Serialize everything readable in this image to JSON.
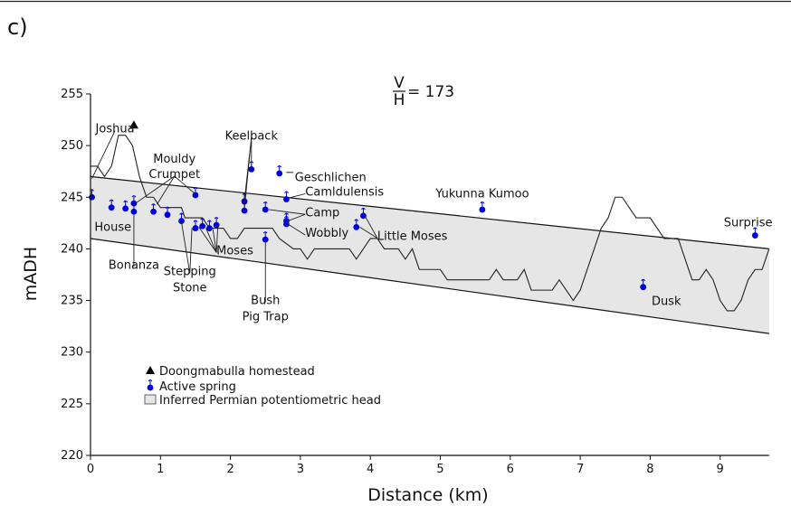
{
  "panel_label": "c)",
  "chart_data": {
    "type": "line",
    "xlabel": "Distance (km)",
    "ylabel": "mADH",
    "xlim": [
      0,
      9.7
    ],
    "ylim": [
      220,
      255
    ],
    "xticks": [
      0,
      1,
      2,
      3,
      4,
      5,
      6,
      7,
      8,
      9
    ],
    "yticks": [
      220,
      225,
      230,
      235,
      240,
      245,
      250,
      255
    ],
    "annotation_ratio": {
      "numerator": "V",
      "denominator": "H",
      "value": "= 173"
    },
    "legend_position": "bottom-left",
    "legend": [
      {
        "label": "Doongmabulla homestead",
        "symbol": "triangle",
        "color": "#000000"
      },
      {
        "label": "Active spring",
        "symbol": "spring",
        "color": "#0000dd"
      },
      {
        "label": "Inferred Permian potentiometric head",
        "symbol": "band",
        "color": "#e6e6e6"
      }
    ],
    "band": {
      "upper": [
        [
          0,
          247
        ],
        [
          9.7,
          240
        ]
      ],
      "lower": [
        [
          0,
          241
        ],
        [
          9.7,
          231.8
        ]
      ]
    },
    "ground_profile": [
      [
        0,
        248
      ],
      [
        0.1,
        248
      ],
      [
        0.2,
        247
      ],
      [
        0.3,
        248
      ],
      [
        0.4,
        251
      ],
      [
        0.5,
        251
      ],
      [
        0.6,
        250
      ],
      [
        0.7,
        247
      ],
      [
        0.8,
        245
      ],
      [
        0.9,
        245
      ],
      [
        1.0,
        244
      ],
      [
        1.3,
        244
      ],
      [
        1.35,
        243
      ],
      [
        1.6,
        243
      ],
      [
        1.7,
        242
      ],
      [
        1.8,
        242
      ],
      [
        1.9,
        242
      ],
      [
        2.0,
        241
      ],
      [
        2.1,
        241
      ],
      [
        2.2,
        242
      ],
      [
        2.6,
        242
      ],
      [
        2.7,
        241
      ],
      [
        2.9,
        240
      ],
      [
        3.0,
        240
      ],
      [
        3.1,
        239
      ],
      [
        3.2,
        240
      ],
      [
        3.7,
        240
      ],
      [
        3.8,
        239
      ],
      [
        3.9,
        240
      ],
      [
        4.0,
        241
      ],
      [
        4.1,
        241
      ],
      [
        4.2,
        240
      ],
      [
        4.4,
        240
      ],
      [
        4.5,
        239
      ],
      [
        4.6,
        240
      ],
      [
        4.7,
        238
      ],
      [
        5.0,
        238
      ],
      [
        5.1,
        237
      ],
      [
        5.7,
        237
      ],
      [
        5.8,
        238
      ],
      [
        5.9,
        237
      ],
      [
        6.1,
        237
      ],
      [
        6.2,
        238
      ],
      [
        6.3,
        236
      ],
      [
        6.6,
        236
      ],
      [
        6.7,
        237
      ],
      [
        6.8,
        236
      ],
      [
        6.9,
        235
      ],
      [
        7.0,
        236
      ],
      [
        7.2,
        240
      ],
      [
        7.3,
        242
      ],
      [
        7.4,
        243
      ],
      [
        7.5,
        245
      ],
      [
        7.6,
        245
      ],
      [
        7.7,
        244
      ],
      [
        7.8,
        243
      ],
      [
        8.0,
        243
      ],
      [
        8.1,
        242
      ],
      [
        8.2,
        241
      ],
      [
        8.4,
        241
      ],
      [
        8.5,
        239
      ],
      [
        8.6,
        237
      ],
      [
        8.7,
        237
      ],
      [
        8.8,
        238
      ],
      [
        8.9,
        237
      ],
      [
        9.0,
        235
      ],
      [
        9.1,
        234
      ],
      [
        9.2,
        234
      ],
      [
        9.3,
        235
      ],
      [
        9.4,
        237
      ],
      [
        9.5,
        238
      ],
      [
        9.6,
        238
      ],
      [
        9.7,
        240
      ]
    ],
    "homestead": {
      "x": 0.62,
      "y": 252
    },
    "springs": [
      {
        "x": 0.02,
        "y": 245.0
      },
      {
        "x": 0.3,
        "y": 244.0
      },
      {
        "x": 0.5,
        "y": 243.9
      },
      {
        "x": 0.62,
        "y": 244.4
      },
      {
        "x": 0.62,
        "y": 243.6
      },
      {
        "x": 0.9,
        "y": 243.6
      },
      {
        "x": 1.1,
        "y": 243.3
      },
      {
        "x": 1.3,
        "y": 242.7
      },
      {
        "x": 1.5,
        "y": 242.0
      },
      {
        "x": 1.6,
        "y": 242.2
      },
      {
        "x": 1.7,
        "y": 242.0
      },
      {
        "x": 1.8,
        "y": 242.3
      },
      {
        "x": 1.5,
        "y": 245.2
      },
      {
        "x": 2.2,
        "y": 244.6
      },
      {
        "x": 2.2,
        "y": 243.7
      },
      {
        "x": 2.3,
        "y": 247.7
      },
      {
        "x": 2.5,
        "y": 243.8
      },
      {
        "x": 2.5,
        "y": 240.9
      },
      {
        "x": 2.7,
        "y": 247.3
      },
      {
        "x": 2.8,
        "y": 244.8
      },
      {
        "x": 2.8,
        "y": 242.7
      },
      {
        "x": 2.8,
        "y": 242.4
      },
      {
        "x": 3.8,
        "y": 242.1
      },
      {
        "x": 3.9,
        "y": 243.2
      },
      {
        "x": 5.6,
        "y": 243.8
      },
      {
        "x": 7.9,
        "y": 236.3
      },
      {
        "x": 9.5,
        "y": 241.3
      }
    ],
    "labels": [
      {
        "text": "Joshua",
        "x": 0.35,
        "y": 251.7,
        "anchor": "middle",
        "leaders": [
          [
            0.02,
            246.8
          ]
        ]
      },
      {
        "text": "House",
        "x": 0.32,
        "y": 242.2,
        "anchor": "middle",
        "leaders": []
      },
      {
        "text": "Bonanza",
        "x": 0.62,
        "y": 238.5,
        "anchor": "middle",
        "leaders": [
          [
            0.62,
            243.3
          ]
        ]
      },
      {
        "text": "Mouldy",
        "x": 1.2,
        "y": 248.8,
        "anchor": "middle",
        "leaders": []
      },
      {
        "text": "Crumpet",
        "x": 1.2,
        "y": 247.3,
        "anchor": "middle",
        "leaders": [
          [
            0.62,
            244.3
          ],
          [
            0.95,
            244.3
          ],
          [
            1.5,
            245.3
          ]
        ]
      },
      {
        "text": "Stepping",
        "x": 1.42,
        "y": 237.9,
        "anchor": "middle",
        "leaders": [
          [
            1.3,
            242.6
          ],
          [
            1.45,
            242.0
          ]
        ]
      },
      {
        "text": "Stone",
        "x": 1.42,
        "y": 236.3,
        "anchor": "middle",
        "leaders": []
      },
      {
        "text": "Moses",
        "x": 1.8,
        "y": 239.9,
        "anchor": "start",
        "leaders": [
          [
            1.55,
            242.1
          ],
          [
            1.65,
            242.0
          ],
          [
            1.75,
            241.9
          ],
          [
            1.82,
            242.2
          ]
        ]
      },
      {
        "text": "Keelback",
        "x": 2.3,
        "y": 251.0,
        "anchor": "middle",
        "leaders": [
          [
            2.2,
            244.7
          ],
          [
            2.2,
            243.9
          ],
          [
            2.3,
            247.8
          ]
        ]
      },
      {
        "text": "Geschlichen",
        "x": 2.92,
        "y": 247.0,
        "anchor": "start",
        "leaders": []
      },
      {
        "text": "Camldulensis",
        "x": 3.07,
        "y": 245.6,
        "anchor": "start",
        "leaders": [
          [
            2.82,
            244.9
          ]
        ]
      },
      {
        "text": "Camp",
        "x": 3.07,
        "y": 243.6,
        "anchor": "start",
        "leaders": [
          [
            2.55,
            243.8
          ],
          [
            2.82,
            242.7
          ]
        ]
      },
      {
        "text": "Wobbly",
        "x": 3.07,
        "y": 241.6,
        "anchor": "start",
        "leaders": [
          [
            2.82,
            242.4
          ]
        ]
      },
      {
        "text": "Little Moses",
        "x": 4.1,
        "y": 241.3,
        "anchor": "start",
        "leaders": [
          [
            3.85,
            242.1
          ],
          [
            3.93,
            243.1
          ]
        ]
      },
      {
        "text": "Bush",
        "x": 2.5,
        "y": 235.1,
        "anchor": "middle",
        "leaders": [
          [
            2.5,
            240.6
          ]
        ]
      },
      {
        "text": "Pig Trap",
        "x": 2.5,
        "y": 233.5,
        "anchor": "middle",
        "leaders": []
      },
      {
        "text": "Yukunna Kumoo",
        "x": 5.6,
        "y": 245.4,
        "anchor": "middle",
        "leaders": []
      },
      {
        "text": "Dusk",
        "x": 8.02,
        "y": 235.0,
        "anchor": "start",
        "leaders": []
      },
      {
        "text": "Surprise",
        "x": 9.4,
        "y": 242.6,
        "anchor": "middle",
        "leaders": []
      }
    ]
  }
}
